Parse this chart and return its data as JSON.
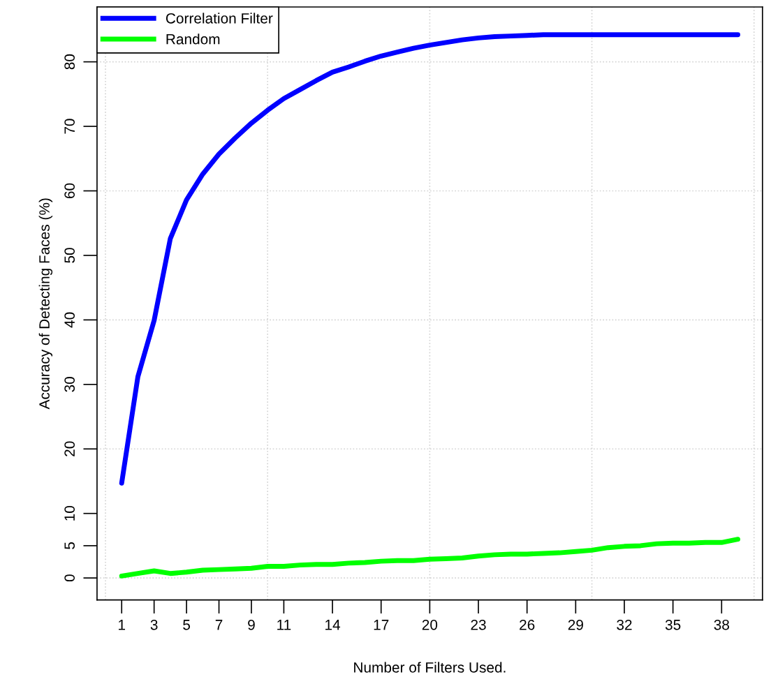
{
  "chart_data": {
    "type": "line",
    "xlabel": "Number of Filters Used.",
    "ylabel": "Accuracy of Detecting Faces (%)",
    "x": [
      1,
      2,
      3,
      4,
      5,
      6,
      7,
      8,
      9,
      10,
      11,
      12,
      13,
      14,
      15,
      16,
      17,
      18,
      19,
      20,
      21,
      22,
      23,
      24,
      25,
      26,
      27,
      28,
      29,
      30,
      31,
      32,
      33,
      34,
      35,
      36,
      37,
      38,
      39
    ],
    "series": [
      {
        "name": "Correlation Filter",
        "color": "#0000ff",
        "values": [
          14.7,
          31.2,
          39.9,
          52.6,
          58.6,
          62.6,
          65.7,
          68.2,
          70.5,
          72.5,
          74.3,
          75.7,
          77.1,
          78.4,
          79.2,
          80.1,
          80.9,
          81.5,
          82.1,
          82.6,
          83.0,
          83.4,
          83.7,
          83.9,
          84.0,
          84.1,
          84.2,
          84.2,
          84.2,
          84.2,
          84.2,
          84.2,
          84.2,
          84.2,
          84.2,
          84.2,
          84.2,
          84.2,
          84.2
        ]
      },
      {
        "name": "Random",
        "color": "#00ff00",
        "values": [
          0.3,
          0.7,
          1.1,
          0.7,
          0.9,
          1.2,
          1.3,
          1.4,
          1.5,
          1.8,
          1.8,
          2.0,
          2.1,
          2.1,
          2.3,
          2.4,
          2.6,
          2.7,
          2.7,
          2.9,
          3.0,
          3.1,
          3.4,
          3.6,
          3.7,
          3.7,
          3.8,
          3.9,
          4.1,
          4.3,
          4.7,
          4.9,
          5.0,
          5.3,
          5.4,
          5.4,
          5.5,
          5.5,
          6.0
        ]
      }
    ],
    "xlim": [
      -0.52,
      40.52
    ],
    "ylim": [
      -3.4,
      88.5
    ],
    "xticks": [
      1,
      3,
      5,
      7,
      9,
      11,
      14,
      17,
      20,
      23,
      26,
      29,
      32,
      35,
      38
    ],
    "yticks": [
      0,
      5,
      10,
      20,
      30,
      40,
      50,
      60,
      70,
      80
    ],
    "ref_lines": [
      {
        "axis": "x",
        "value": 0,
        "color": "#d3d3d3",
        "line_style": "dotted"
      },
      {
        "axis": "x",
        "value": 10,
        "color": "#d3d3d3",
        "line_style": "dotted"
      },
      {
        "axis": "x",
        "value": 20,
        "color": "#d3d3d3",
        "line_style": "dotted"
      },
      {
        "axis": "x",
        "value": 30,
        "color": "#d3d3d3",
        "line_style": "dotted"
      },
      {
        "axis": "x",
        "value": 40,
        "color": "#d3d3d3",
        "line_style": "dotted"
      },
      {
        "axis": "y",
        "value": 0,
        "color": "#d3d3d3",
        "line_style": "dotted"
      },
      {
        "axis": "y",
        "value": 20,
        "color": "#d3d3d3",
        "line_style": "dotted"
      },
      {
        "axis": "y",
        "value": 40,
        "color": "#d3d3d3",
        "line_style": "dotted"
      },
      {
        "axis": "y",
        "value": 60,
        "color": "#d3d3d3",
        "line_style": "dotted"
      },
      {
        "axis": "y",
        "value": 80,
        "color": "#d3d3d3",
        "line_style": "dotted"
      }
    ],
    "legend": "top left",
    "marker": "none",
    "line_style": "solid",
    "grid": false
  }
}
